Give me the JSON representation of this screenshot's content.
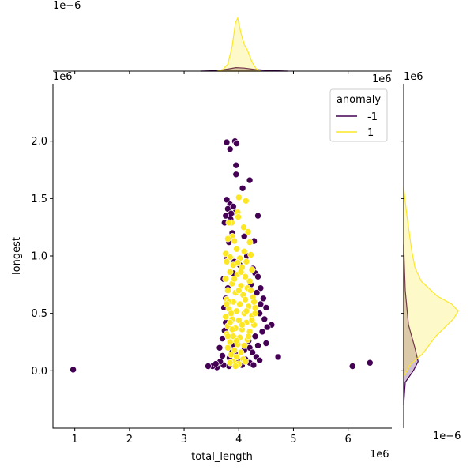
{
  "chart_data": {
    "type": "scatter",
    "title": "",
    "xlabel": "total_length",
    "ylabel": "longest",
    "x_scale_label": "1e6",
    "y_scale_label": "1e6",
    "top_marginal_scale_label": "1e−6",
    "right_marginal_scale_label": "1e−6",
    "xlim": [
      0.6,
      6.8
    ],
    "ylim": [
      -0.5,
      2.5
    ],
    "x_ticks": [
      1,
      2,
      3,
      4,
      5,
      6
    ],
    "x_tick_labels": [
      "1",
      "2",
      "3",
      "4",
      "5",
      "6"
    ],
    "y_ticks": [
      0.0,
      0.5,
      1.0,
      1.5,
      2.0
    ],
    "y_tick_labels": [
      "0.0",
      "0.5",
      "1.0",
      "1.5",
      "2.0"
    ],
    "grid": false,
    "legend": {
      "title": "anomaly",
      "placement": "top-right",
      "entries": [
        {
          "label": "-1",
          "color": "#440154"
        },
        {
          "label": "1",
          "color": "#fde725"
        }
      ]
    },
    "series": [
      {
        "name": "-1",
        "color": "#440154",
        "points": [
          [
            0.97,
            0.01
          ],
          [
            6.08,
            0.04
          ],
          [
            6.4,
            0.07
          ],
          [
            4.72,
            0.12
          ],
          [
            3.78,
            1.99
          ],
          [
            3.84,
            1.93
          ],
          [
            3.93,
            2.0
          ],
          [
            3.96,
            1.98
          ],
          [
            3.95,
            1.79
          ],
          [
            3.95,
            1.71
          ],
          [
            4.2,
            1.66
          ],
          [
            4.07,
            1.59
          ],
          [
            3.78,
            1.49
          ],
          [
            3.84,
            1.45
          ],
          [
            3.8,
            1.41
          ],
          [
            3.9,
            1.43
          ],
          [
            3.94,
            1.38
          ],
          [
            3.86,
            1.37
          ],
          [
            3.76,
            1.35
          ],
          [
            4.35,
            1.35
          ],
          [
            3.85,
            1.32
          ],
          [
            3.74,
            1.29
          ],
          [
            3.88,
            1.2
          ],
          [
            4.1,
            1.17
          ],
          [
            4.28,
            1.13
          ],
          [
            3.82,
            1.12
          ],
          [
            3.79,
            0.98
          ],
          [
            4.15,
            1.0
          ],
          [
            3.92,
            0.95
          ],
          [
            4.26,
            0.89
          ],
          [
            4.3,
            0.85
          ],
          [
            4.35,
            0.82
          ],
          [
            4.22,
            0.75
          ],
          [
            4.4,
            0.72
          ],
          [
            4.45,
            0.63
          ],
          [
            4.5,
            0.55
          ],
          [
            4.38,
            0.5
          ],
          [
            4.47,
            0.45
          ],
          [
            4.6,
            0.4
          ],
          [
            4.52,
            0.38
          ],
          [
            4.43,
            0.34
          ],
          [
            4.3,
            0.3
          ],
          [
            4.5,
            0.24
          ],
          [
            4.35,
            0.22
          ],
          [
            4.2,
            0.2
          ],
          [
            4.1,
            0.18
          ],
          [
            4.25,
            0.16
          ],
          [
            4.32,
            0.12
          ],
          [
            4.38,
            0.09
          ],
          [
            4.2,
            0.07
          ],
          [
            4.06,
            0.05
          ],
          [
            4.0,
            0.08
          ],
          [
            3.9,
            0.06
          ],
          [
            3.82,
            0.04
          ],
          [
            3.72,
            0.05
          ],
          [
            3.6,
            0.03
          ],
          [
            3.52,
            0.04
          ],
          [
            3.44,
            0.04
          ],
          [
            3.66,
            0.08
          ],
          [
            3.7,
            0.13
          ],
          [
            3.65,
            0.2
          ],
          [
            3.7,
            0.28
          ],
          [
            3.74,
            0.35
          ],
          [
            3.76,
            0.42
          ],
          [
            3.73,
            0.55
          ],
          [
            3.76,
            0.63
          ],
          [
            3.8,
            0.72
          ],
          [
            3.72,
            0.8
          ],
          [
            3.9,
            0.85
          ],
          [
            4.02,
            0.92
          ],
          [
            3.88,
            0.18
          ],
          [
            3.96,
            0.14
          ],
          [
            4.12,
            0.1
          ],
          [
            3.83,
            0.11
          ],
          [
            4.27,
            0.05
          ],
          [
            3.58,
            0.06
          ],
          [
            3.92,
            0.22
          ],
          [
            4.18,
            0.26
          ],
          [
            4.4,
            0.58
          ],
          [
            4.33,
            0.68
          ]
        ]
      },
      {
        "name": "1",
        "color": "#fde725",
        "points": [
          [
            4.0,
            1.51
          ],
          [
            4.13,
            1.48
          ],
          [
            3.98,
            1.38
          ],
          [
            3.99,
            1.34
          ],
          [
            3.87,
            1.29
          ],
          [
            3.82,
            1.29
          ],
          [
            4.09,
            1.25
          ],
          [
            4.17,
            1.21
          ],
          [
            3.88,
            1.17
          ],
          [
            3.8,
            1.15
          ],
          [
            3.92,
            1.13
          ],
          [
            4.2,
            1.12
          ],
          [
            3.76,
            1.02
          ],
          [
            3.96,
            1.06
          ],
          [
            4.1,
            1.04
          ],
          [
            4.22,
            1.01
          ],
          [
            3.84,
            0.99
          ],
          [
            4.02,
            0.98
          ],
          [
            4.14,
            0.95
          ],
          [
            3.78,
            0.95
          ],
          [
            3.9,
            0.92
          ],
          [
            4.06,
            0.9
          ],
          [
            4.24,
            0.88
          ],
          [
            3.84,
            0.86
          ],
          [
            3.98,
            0.84
          ],
          [
            4.12,
            0.82
          ],
          [
            3.76,
            0.8
          ],
          [
            4.2,
            0.78
          ],
          [
            3.88,
            0.76
          ],
          [
            4.04,
            0.74
          ],
          [
            4.16,
            0.72
          ],
          [
            3.8,
            0.7
          ],
          [
            3.94,
            0.68
          ],
          [
            4.08,
            0.66
          ],
          [
            4.26,
            0.64
          ],
          [
            3.78,
            0.62
          ],
          [
            3.9,
            0.6
          ],
          [
            4.02,
            0.58
          ],
          [
            4.18,
            0.56
          ],
          [
            4.3,
            0.55
          ],
          [
            3.82,
            0.54
          ],
          [
            3.96,
            0.52
          ],
          [
            4.1,
            0.5
          ],
          [
            4.24,
            0.48
          ],
          [
            3.76,
            0.47
          ],
          [
            3.88,
            0.45
          ],
          [
            4.0,
            0.44
          ],
          [
            4.14,
            0.42
          ],
          [
            4.28,
            0.4
          ],
          [
            3.8,
            0.39
          ],
          [
            3.94,
            0.37
          ],
          [
            4.06,
            0.36
          ],
          [
            4.2,
            0.34
          ],
          [
            3.78,
            0.32
          ],
          [
            3.9,
            0.3
          ],
          [
            4.02,
            0.29
          ],
          [
            4.16,
            0.27
          ],
          [
            3.84,
            0.25
          ],
          [
            3.98,
            0.23
          ],
          [
            4.1,
            0.22
          ],
          [
            3.8,
            0.2
          ],
          [
            3.92,
            0.18
          ],
          [
            4.04,
            0.16
          ],
          [
            3.86,
            0.14
          ],
          [
            3.96,
            0.12
          ],
          [
            4.08,
            0.1
          ],
          [
            3.9,
            0.08
          ],
          [
            4.0,
            0.06
          ],
          [
            3.84,
            0.07
          ],
          [
            3.94,
            0.04
          ],
          [
            4.12,
            0.08
          ],
          [
            3.82,
            0.6
          ],
          [
            4.22,
            0.7
          ],
          [
            3.86,
            0.5
          ],
          [
            4.06,
            0.4
          ],
          [
            3.92,
            0.8
          ],
          [
            4.18,
            0.3
          ],
          [
            3.98,
            0.94
          ],
          [
            4.28,
            0.6
          ],
          [
            3.78,
            0.58
          ],
          [
            4.0,
            0.7
          ],
          [
            4.12,
            0.62
          ],
          [
            3.88,
            0.36
          ],
          [
            4.24,
            0.44
          ],
          [
            3.96,
            0.26
          ],
          [
            4.14,
            0.52
          ],
          [
            3.84,
            0.42
          ],
          [
            4.04,
            0.86
          ],
          [
            4.3,
            0.5
          ],
          [
            3.8,
            0.3
          ]
        ]
      }
    ],
    "marginals": {
      "top": {
        "type": "kde",
        "axis": "x",
        "series": [
          {
            "name": "-1",
            "color": "#440154",
            "x": [
              3.3,
              3.6,
              3.8,
              3.95,
              4.1,
              4.3,
              4.6,
              4.9
            ],
            "density": [
              0.0,
              0.004,
              0.018,
              0.03,
              0.026,
              0.014,
              0.005,
              0.0
            ]
          },
          {
            "name": "1",
            "color": "#fde725",
            "x": [
              3.6,
              3.7,
              3.8,
              3.88,
              3.94,
              3.98,
              4.04,
              4.1,
              4.16,
              4.24,
              4.32,
              4.4
            ],
            "density": [
              0.0,
              0.01,
              0.06,
              0.22,
              0.42,
              0.46,
              0.33,
              0.23,
              0.18,
              0.08,
              0.02,
              0.0
            ]
          }
        ]
      },
      "right": {
        "type": "kde",
        "axis": "y",
        "series": [
          {
            "name": "-1",
            "color": "#440154",
            "y": [
              -0.3,
              -0.1,
              0.0,
              0.08,
              0.2,
              0.4,
              0.7,
              1.1
            ],
            "density": [
              0.0,
              0.01,
              0.06,
              0.09,
              0.07,
              0.03,
              0.01,
              0.0
            ]
          },
          {
            "name": "1",
            "color": "#fde725",
            "y": [
              -0.05,
              0.05,
              0.15,
              0.3,
              0.45,
              0.52,
              0.58,
              0.65,
              0.78,
              0.9,
              1.05,
              1.2,
              1.35,
              1.5,
              1.6
            ],
            "density": [
              0.0,
              0.04,
              0.12,
              0.2,
              0.31,
              0.34,
              0.3,
              0.21,
              0.11,
              0.07,
              0.05,
              0.035,
              0.02,
              0.008,
              0.0
            ]
          }
        ]
      }
    }
  }
}
